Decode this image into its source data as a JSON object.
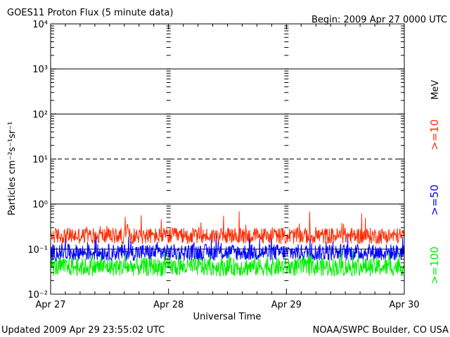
{
  "chart_data": {
    "type": "line",
    "title": "GOES11 Proton Flux (5 minute data)",
    "begin_label": "Begin: 2009 Apr 27 0000 UTC",
    "xlabel": "Universal Time",
    "ylabel": "Particles cm⁻²s⁻¹sr⁻¹",
    "unit_label": "MeV",
    "y_scale": "log",
    "ylim": [
      0.01,
      10000
    ],
    "y_ticks": [
      {
        "value": 10000,
        "label": "10⁴"
      },
      {
        "value": 1000,
        "label": "10³"
      },
      {
        "value": 100,
        "label": "10²"
      },
      {
        "value": 10,
        "label": "10¹"
      },
      {
        "value": 1,
        "label": "10⁰"
      },
      {
        "value": 0.1,
        "label": "10⁻¹"
      },
      {
        "value": 0.01,
        "label": "10⁻²"
      }
    ],
    "x_ticks": [
      "Apr 27",
      "Apr 28",
      "Apr 29",
      "Apr 30"
    ],
    "x_range_days": [
      0,
      3
    ],
    "reference_lines": [
      {
        "value": 1000,
        "style": "solid"
      },
      {
        "value": 100,
        "style": "solid"
      },
      {
        "value": 10,
        "style": "dashed"
      },
      {
        "value": 1,
        "style": "solid"
      },
      {
        "value": 0.1,
        "style": "solid"
      }
    ],
    "series": [
      {
        "name": ">=10",
        "color": "#ff2a00",
        "typical_low": 0.13,
        "typical_high": 0.3,
        "peak": 0.7
      },
      {
        "name": ">=50",
        "color": "#0000ff",
        "typical_low": 0.055,
        "typical_high": 0.13,
        "peak": 0.2
      },
      {
        "name": ">=100",
        "color": "#00ee00",
        "typical_low": 0.025,
        "typical_high": 0.065,
        "peak": 0.1
      }
    ]
  },
  "footer": {
    "updated": "Updated 2009 Apr 29 23:55:02 UTC",
    "credit": "NOAA/SWPC Boulder, CO USA"
  }
}
